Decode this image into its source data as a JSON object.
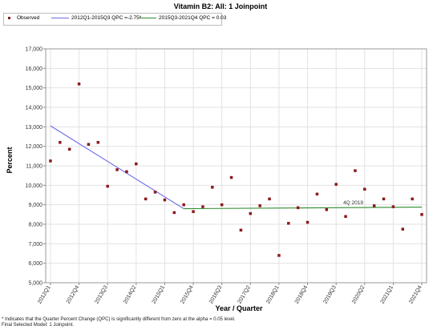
{
  "chart_data": {
    "type": "scatter",
    "title": "Vitamin B2: All: 1 Joinpoint",
    "xlabel": "Year / Quarter",
    "ylabel": "Percent",
    "ylim": [
      5000,
      17000
    ],
    "yticks": [
      "5,000",
      "6,000",
      "7,000",
      "8,000",
      "9,000",
      "10,000",
      "11,000",
      "12,000",
      "13,000",
      "14,000",
      "15,000",
      "16,000",
      "17,000"
    ],
    "categories": [
      "2012Q1",
      "2012Q2",
      "2012Q3",
      "2012Q4",
      "2013Q1",
      "2013Q2",
      "2013Q3",
      "2013Q4",
      "2014Q1",
      "2014Q2",
      "2014Q3",
      "2014Q4",
      "2015Q1",
      "2015Q2",
      "2015Q3",
      "2015Q4",
      "2016Q1",
      "2016Q2",
      "2016Q3",
      "2016Q4",
      "2017Q1",
      "2017Q2",
      "2017Q3",
      "2017Q4",
      "2018Q1",
      "2018Q2",
      "2018Q3",
      "2018Q4",
      "2019Q1",
      "2019Q2",
      "2019Q3",
      "2019Q4",
      "2020Q1",
      "2020Q2",
      "2020Q3",
      "2020Q4",
      "2021Q1",
      "2021Q2",
      "2021Q3",
      "2021Q4"
    ],
    "xtick_labels": [
      "2012Q1",
      "2012Q4",
      "2013Q3",
      "2014Q2",
      "2015Q1",
      "2015Q4",
      "2016Q3",
      "2017Q2",
      "2018Q1",
      "2018Q4",
      "2019Q3",
      "2020Q2",
      "2021Q1",
      "2021Q4"
    ],
    "grid": true,
    "legend_position": "top-left",
    "series": [
      {
        "name": "Observed",
        "style": "markers",
        "color": "#8b1a1a",
        "values": [
          11250,
          12200,
          11850,
          15200,
          12100,
          12200,
          9950,
          10800,
          10700,
          11100,
          9300,
          9650,
          9250,
          8600,
          9000,
          8650,
          8900,
          9900,
          9000,
          10400,
          7700,
          8550,
          8950,
          9300,
          6400,
          8050,
          8850,
          8100,
          9550,
          8750,
          10050,
          8400,
          10750,
          9800,
          8950,
          9300,
          8900,
          7750,
          9300,
          8500
        ]
      },
      {
        "name": "2012Q1-2015Q3 QPC =-2.75*",
        "style": "line",
        "color": "#6a6ae6",
        "x": [
          "2012Q1",
          "2015Q3"
        ],
        "values": [
          13050,
          8800
        ]
      },
      {
        "name": "2015Q3-2021Q4 QPC = 0.03",
        "style": "line",
        "color": "#2e8b2e",
        "x": [
          "2015Q3",
          "2021Q4"
        ],
        "values": [
          8800,
          8880
        ]
      }
    ],
    "annotations": [
      {
        "text": "4Q 2019",
        "x": "2019Q4",
        "y": 8900
      }
    ]
  },
  "footnote": {
    "line1": "* Indicates that the Quarter Percent Change (QPC) is significantly different from zero at the alpha = 0.05 level.",
    "line2": "Final Selected Model: 1 Joinpoint."
  }
}
